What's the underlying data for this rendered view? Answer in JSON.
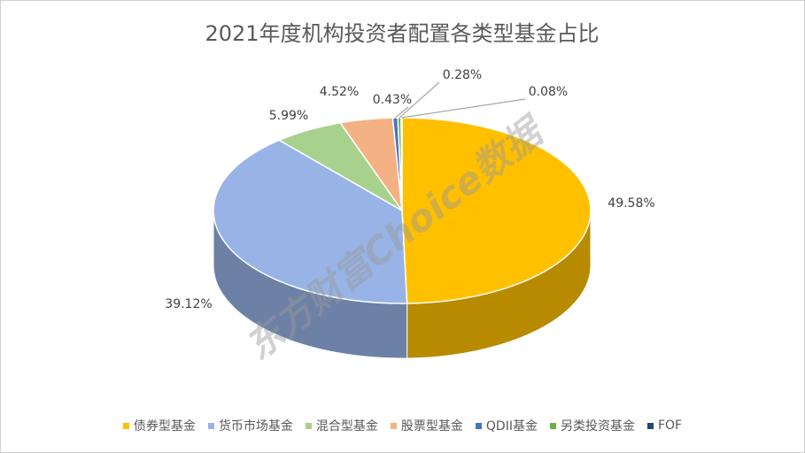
{
  "chart_data": {
    "type": "pie3d",
    "title": "2021年度机构投资者配置各类型基金占比",
    "watermark": "东方财富Choice数据",
    "categories": [
      "债券型基金",
      "货币市场基金",
      "混合型基金",
      "股票型基金",
      "QDII基金",
      "另类投资基金",
      "FOF"
    ],
    "values": [
      49.58,
      39.12,
      5.99,
      4.52,
      0.43,
      0.28,
      0.08
    ],
    "value_labels": [
      "49.58%",
      "39.12%",
      "5.99%",
      "4.52%",
      "0.43%",
      "0.28%",
      "0.08%"
    ],
    "colors": [
      "#FFC000",
      "#98B3E6",
      "#A9D18E",
      "#F4B183",
      "#4472C4",
      "#70AD47",
      "#264478"
    ],
    "legend": "bottom"
  }
}
